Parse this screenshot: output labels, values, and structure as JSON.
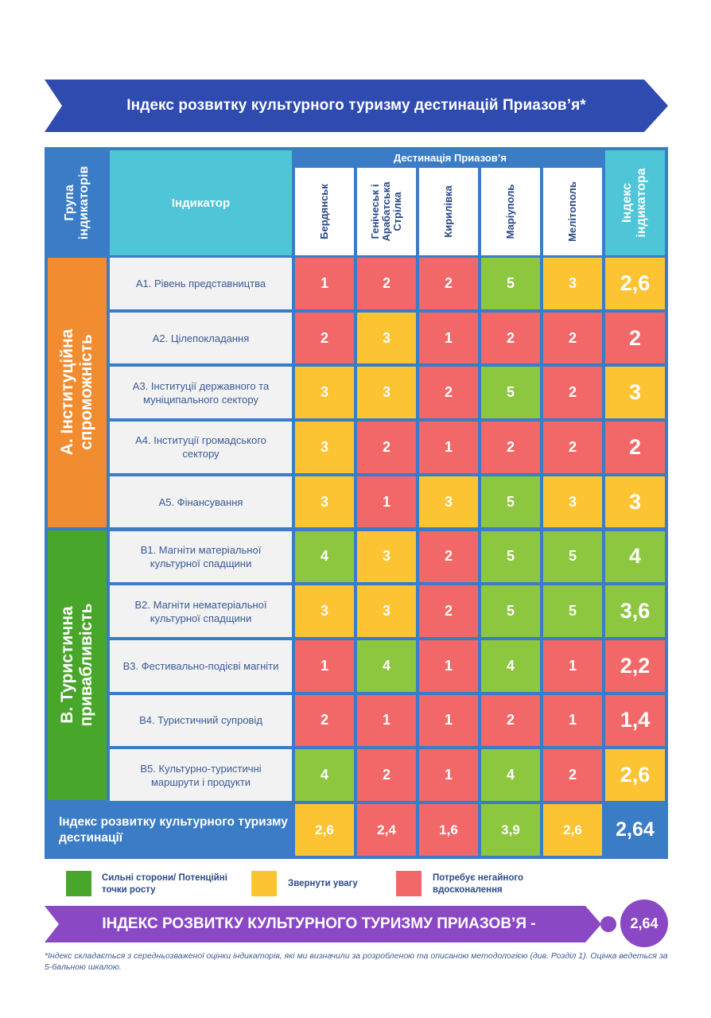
{
  "title": "Індекс розвитку культурного туризму дестинацій Приазов’я*",
  "headers": {
    "group": "Група індикаторів",
    "indicator": "Індикатор",
    "destinations": "Дестинація Приазов’я",
    "index": "Індекс індикатора"
  },
  "cities": [
    "Бердянськ",
    "Генічеськ і Арабатська Стрілка",
    "Кирилівка",
    "Маріуполь",
    "Мелітополь"
  ],
  "groups": [
    {
      "label": "А. Інституційна спроможність",
      "color": "#f28c30"
    },
    {
      "label": "В. Туристична привабливість",
      "color": "#48a62a"
    }
  ],
  "rows": [
    {
      "indicator": "А1. Рівень представництва",
      "values": [
        "1",
        "2",
        "2",
        "5",
        "3"
      ],
      "index": "2,6"
    },
    {
      "indicator": "А2. Цілепокладання",
      "values": [
        "2",
        "3",
        "1",
        "2",
        "2"
      ],
      "index": "2"
    },
    {
      "indicator": "А3.  Інституції державного та муніципального сектору",
      "values": [
        "3",
        "3",
        "2",
        "5",
        "2"
      ],
      "index": "3"
    },
    {
      "indicator": "А4. Інституції громадського сектору",
      "values": [
        "3",
        "2",
        "1",
        "2",
        "2"
      ],
      "index": "2"
    },
    {
      "indicator": "А5. Фінансування",
      "values": [
        "3",
        "1",
        "3",
        "5",
        "3"
      ],
      "index": "3"
    },
    {
      "indicator": "В1. Магніти матеріальної культурної спадщини",
      "values": [
        "4",
        "3",
        "2",
        "5",
        "5"
      ],
      "index": "4"
    },
    {
      "indicator": "В2.  Магніти нематеріальної культурної спадщини",
      "values": [
        "3",
        "3",
        "2",
        "5",
        "5"
      ],
      "index": "3,6"
    },
    {
      "indicator": "В3. Фестивально-подієві магніти",
      "values": [
        "1",
        "4",
        "1",
        "4",
        "1"
      ],
      "index": "2,2"
    },
    {
      "indicator": "В4. Туристичний супровід",
      "values": [
        "2",
        "1",
        "1",
        "2",
        "1"
      ],
      "index": "1,4"
    },
    {
      "indicator": "В5. Культурно-туристичні маршрути і продукти",
      "values": [
        "4",
        "2",
        "1",
        "4",
        "2"
      ],
      "index": "2,6"
    }
  ],
  "total_row": {
    "label": "Індекс розвитку культурного туризму дестинації",
    "values": [
      "2,6",
      "2,4",
      "1,6",
      "3,9",
      "2,6"
    ],
    "index": "2,64"
  },
  "colors": {
    "green": "#8dc63f",
    "yellow": "#fcc332",
    "red": "#f26767",
    "banner": "#2f4bb0",
    "footer": "#8a48c4",
    "frame": "#3a7cc6"
  },
  "legend": [
    {
      "label": "Сильні сторони/ Потенційні точки росту",
      "color": "#48a62a"
    },
    {
      "label": "Звернути увагу",
      "color": "#fcc332"
    },
    {
      "label": "Потребує негайного вдосконалення",
      "color": "#f26767"
    }
  ],
  "footer": {
    "label": "ІНДЕКС РОЗВИТКУ КУЛЬТУРНОГО ТУРИЗМУ ПРИАЗОВ’Я -",
    "value": "2,64"
  },
  "footnote": "*Індекс складається з середньозваженої оцінки індикаторів, які ми визначили за розробленою та описаною методологією (див. Розділ 1). Оцінка ведеться за 5-бальною шкалою."
}
